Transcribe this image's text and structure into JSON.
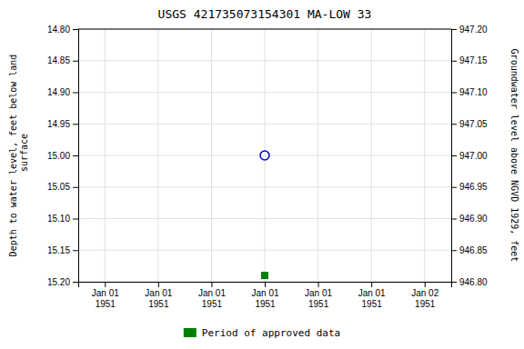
{
  "chart_data": {
    "type": "scatter",
    "title": "USGS 421735073154301 MA-LOW   33",
    "ylabel": "Depth to water level, feet below land\n surface",
    "y2label": "Groundwater level above NGVD 1929, feet",
    "categories": [
      "Jan 01\n1951",
      "Jan 01\n1951",
      "Jan 01\n1951",
      "Jan 01\n1951",
      "Jan 01\n1951",
      "Jan 01\n1951",
      "Jan 02\n1951"
    ],
    "series": [
      {
        "color": "#0000cc",
        "marker": "open-circle",
        "values": [
          null,
          null,
          null,
          15.0,
          null,
          null,
          null
        ]
      },
      {
        "name": "Period of approved data",
        "color": "#008000",
        "marker": "square",
        "values": [
          null,
          null,
          null,
          15.19,
          null,
          null,
          null
        ]
      }
    ],
    "ylim": [
      15.2,
      14.8
    ],
    "yticks": [
      {
        "value": 14.8,
        "label": "14.80"
      },
      {
        "value": 14.85,
        "label": "14.85"
      },
      {
        "value": 14.9,
        "label": "14.90"
      },
      {
        "value": 14.95,
        "label": "14.95"
      },
      {
        "value": 15.0,
        "label": "15.00"
      },
      {
        "value": 15.05,
        "label": "15.05"
      },
      {
        "value": 15.1,
        "label": "15.10"
      },
      {
        "value": 15.15,
        "label": "15.15"
      },
      {
        "value": 15.2,
        "label": "15.20"
      }
    ],
    "y2lim": [
      946.8,
      947.2
    ],
    "y2ticks": [
      {
        "value": 947.2,
        "label": "947.20"
      },
      {
        "value": 947.15,
        "label": "947.15"
      },
      {
        "value": 947.1,
        "label": "947.10"
      },
      {
        "value": 947.05,
        "label": "947.05"
      },
      {
        "value": 947.0,
        "label": "947.00"
      },
      {
        "value": 946.95,
        "label": "946.95"
      },
      {
        "value": 946.9,
        "label": "946.90"
      },
      {
        "value": 946.85,
        "label": "946.85"
      },
      {
        "value": 946.8,
        "label": "946.80"
      }
    ],
    "grid": true,
    "legend": "bottom"
  }
}
